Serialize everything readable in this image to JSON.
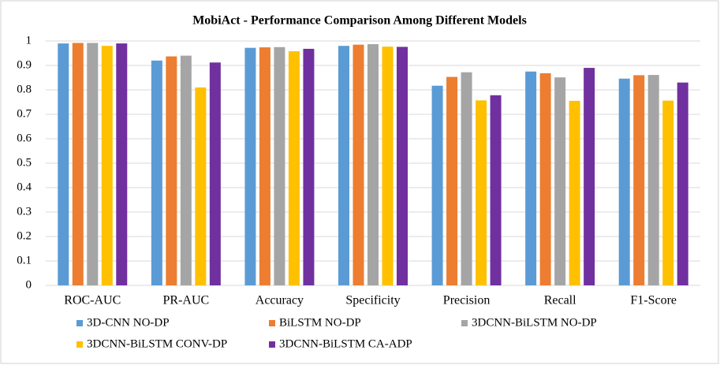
{
  "chart_data": {
    "type": "bar",
    "title": "MobiAct - Performance Comparison Among Different Models",
    "categories": [
      "ROC-AUC",
      "PR-AUC",
      "Accuracy",
      "Specificity",
      "Precision",
      "Recall",
      "F1-Score"
    ],
    "series": [
      {
        "name": "3D-CNN NO-DP",
        "color": "#5b9bd5",
        "values": [
          0.99,
          0.92,
          0.972,
          0.98,
          0.817,
          0.875,
          0.846
        ]
      },
      {
        "name": "BiLSTM NO-DP",
        "color": "#ed7d31",
        "values": [
          0.992,
          0.937,
          0.974,
          0.985,
          0.853,
          0.868,
          0.86
        ]
      },
      {
        "name": "3DCNN-BiLSTM NO-DP",
        "color": "#a5a5a5",
        "values": [
          0.992,
          0.94,
          0.975,
          0.987,
          0.872,
          0.851,
          0.861
        ]
      },
      {
        "name": "3DCNN-BiLSTM CONV-DP",
        "color": "#ffc000",
        "values": [
          0.98,
          0.81,
          0.958,
          0.977,
          0.757,
          0.755,
          0.756
        ]
      },
      {
        "name": "3DCNN-BiLSTM CA-ADP",
        "color": "#7030a0",
        "values": [
          0.99,
          0.912,
          0.968,
          0.976,
          0.778,
          0.89,
          0.83
        ]
      }
    ],
    "ylim": [
      0,
      1
    ],
    "yticks": [
      0,
      0.1,
      0.2,
      0.3,
      0.4,
      0.5,
      0.6,
      0.7,
      0.8,
      0.9,
      1
    ],
    "grid": true,
    "legend": "bottom"
  }
}
